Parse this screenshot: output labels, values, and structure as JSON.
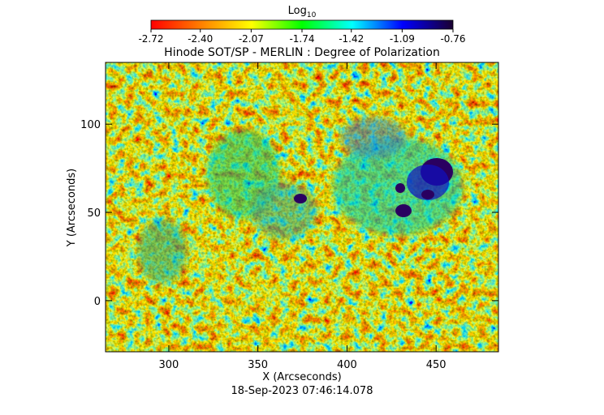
{
  "chart_data": {
    "type": "heatmap",
    "title": "Hinode SOT/SP - MERLIN : Degree of Polarization",
    "xlabel": "X (Arcseconds)",
    "ylabel": "Y (Arcseconds)",
    "timestamp": "18-Sep-2023 07:46:14.078",
    "xlim": [
      264.5,
      485
    ],
    "ylim": [
      -29,
      135
    ],
    "xticks": [
      300,
      350,
      400,
      450
    ],
    "yticks": [
      0,
      50,
      100
    ],
    "colorbar": {
      "label": "Log",
      "label_sub": "10",
      "lim": [
        -2.72,
        -0.76
      ],
      "ticks": [
        -2.72,
        {
          "value": -2.4,
          "label": "-2.40"
        },
        -2.07,
        -1.74,
        -1.42,
        -1.09,
        -0.76
      ],
      "colors": [
        "#ff0000",
        "#ff8000",
        "#ffff00",
        "#00ff00",
        "#00ffff",
        "#0000ff",
        "#1a0030"
      ]
    }
  }
}
